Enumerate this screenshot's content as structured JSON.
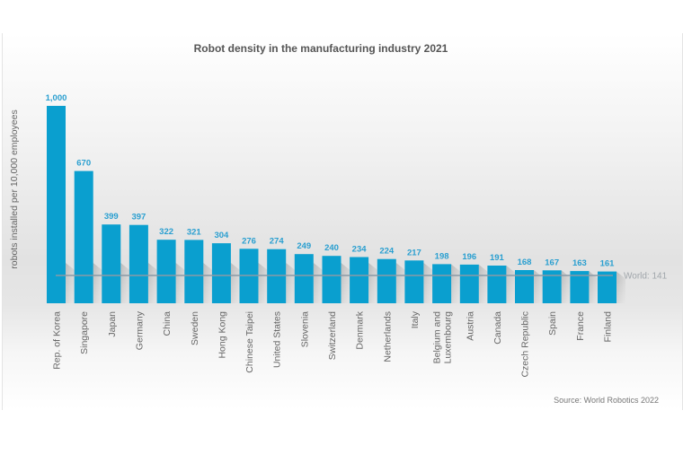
{
  "chart_data": {
    "type": "bar",
    "title": "Robot density in the manufacturing industry 2021",
    "xlabel": "",
    "ylabel": "robots installed per 10,000 employees",
    "ylim": [
      0,
      1000
    ],
    "grid": false,
    "categories": [
      "Rep. of Korea",
      "Singapore",
      "Japan",
      "Germany",
      "China",
      "Sweden",
      "Hong Kong",
      "Chinese Taipei",
      "United States",
      "Slovenia",
      "Switzerland",
      "Denmark",
      "Netherlands",
      "Italy",
      "Belgium and Luxembourg",
      "Austria",
      "Canada",
      "Czech Republic",
      "Spain",
      "France",
      "Finland"
    ],
    "category_lines": [
      [
        "Rep. of Korea"
      ],
      [
        "Singapore"
      ],
      [
        "Japan"
      ],
      [
        "Germany"
      ],
      [
        "China"
      ],
      [
        "Sweden"
      ],
      [
        "Hong Kong"
      ],
      [
        "Chinese Taipei"
      ],
      [
        "United States"
      ],
      [
        "Slovenia"
      ],
      [
        "Switzerland"
      ],
      [
        "Denmark"
      ],
      [
        "Netherlands"
      ],
      [
        "Italy"
      ],
      [
        "Belgium and",
        "Luxembourg"
      ],
      [
        "Austria"
      ],
      [
        "Canada"
      ],
      [
        "Czech Republic"
      ],
      [
        "Spain"
      ],
      [
        "France"
      ],
      [
        "Finland"
      ]
    ],
    "values": [
      1000,
      670,
      399,
      397,
      322,
      321,
      304,
      276,
      274,
      249,
      240,
      234,
      224,
      217,
      198,
      196,
      191,
      168,
      167,
      163,
      161
    ],
    "value_labels": [
      "1,000",
      "670",
      "399",
      "397",
      "322",
      "321",
      "304",
      "276",
      "274",
      "249",
      "240",
      "234",
      "224",
      "217",
      "198",
      "196",
      "191",
      "168",
      "167",
      "163",
      "161"
    ],
    "reference_line": {
      "label": "World: 141",
      "value": 141
    },
    "source": "Source: World Robotics 2022",
    "colors": {
      "bar": "#0a9fcf",
      "value_label": "#2a9fd0",
      "reference_line": "#8a9aa6"
    }
  }
}
